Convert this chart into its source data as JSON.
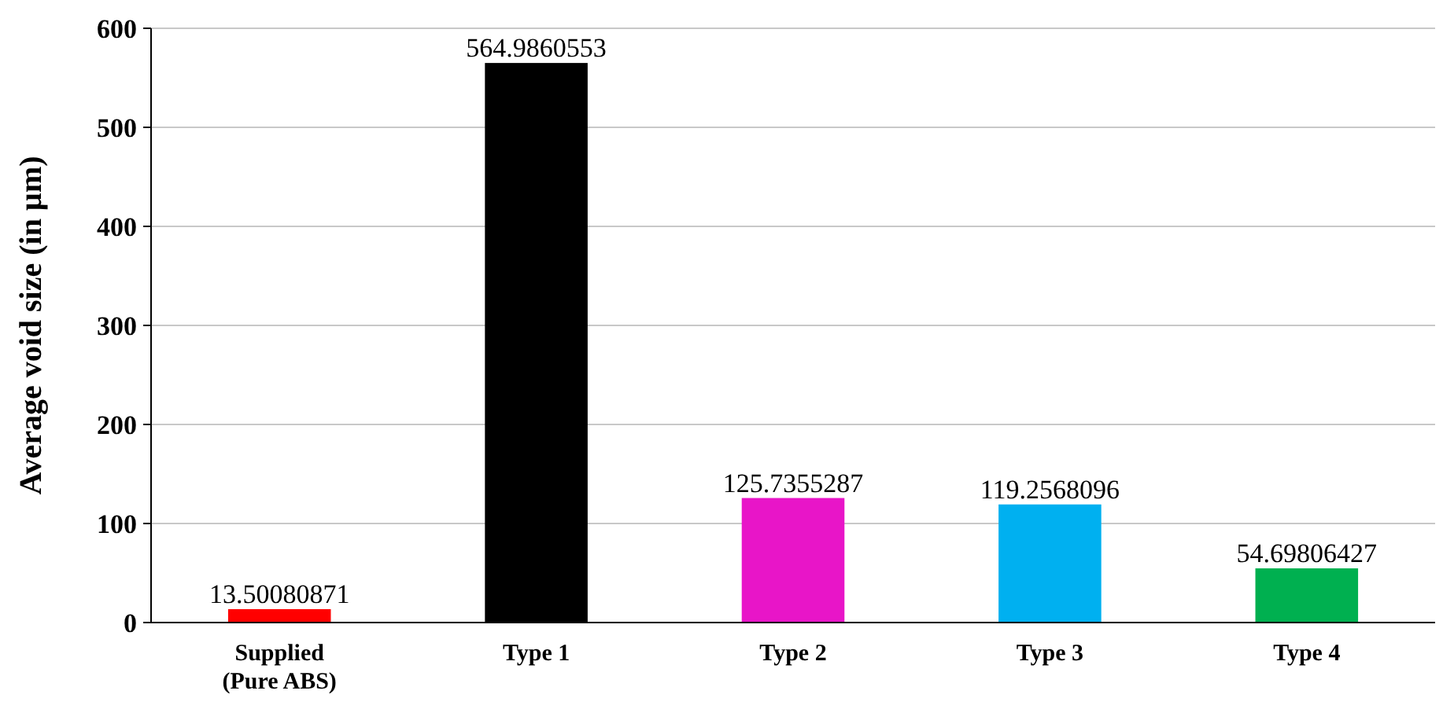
{
  "chart_data": {
    "type": "bar",
    "ylabel": "Average void size (in µm)",
    "categories": [
      "Supplied\n(Pure ABS)",
      "Type 1",
      "Type 2",
      "Type 3",
      "Type 4"
    ],
    "values": [
      13.50080871,
      564.9860553,
      125.7355287,
      119.2568096,
      54.69806427
    ],
    "colors": [
      "#ff0000",
      "#000000",
      "#e815c8",
      "#00b0f0",
      "#00b050"
    ],
    "ylim": [
      0,
      600
    ],
    "yticks": [
      0,
      100,
      200,
      300,
      400,
      500,
      600
    ],
    "grid": "y",
    "data_labels": true
  }
}
